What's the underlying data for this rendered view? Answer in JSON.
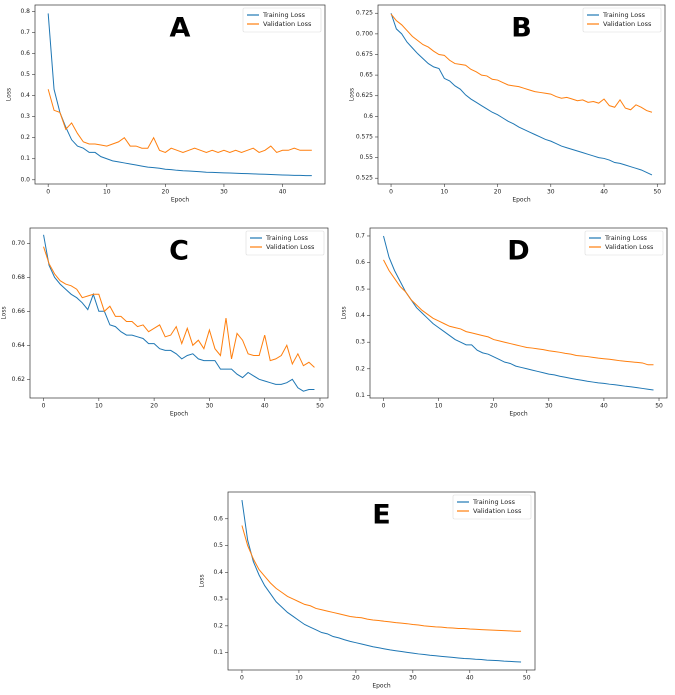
{
  "chart_data": [
    {
      "type": "line",
      "annotation": "A",
      "xlabel": "Epoch",
      "ylabel": "Loss",
      "legend": "upper right",
      "x": [
        0,
        1,
        2,
        3,
        4,
        5,
        6,
        7,
        8,
        9,
        10,
        11,
        12,
        13,
        14,
        15,
        16,
        17,
        18,
        19,
        20,
        21,
        22,
        23,
        24,
        25,
        26,
        27,
        28,
        29,
        30,
        31,
        32,
        33,
        34,
        35,
        36,
        37,
        38,
        39,
        40,
        41,
        42,
        43,
        44,
        45
      ],
      "series": [
        {
          "name": "Training Loss",
          "color": "#1f77b4",
          "values": [
            0.79,
            0.43,
            0.32,
            0.25,
            0.19,
            0.16,
            0.15,
            0.13,
            0.13,
            0.11,
            0.1,
            0.09,
            0.085,
            0.08,
            0.075,
            0.07,
            0.065,
            0.06,
            0.058,
            0.055,
            0.05,
            0.048,
            0.045,
            0.043,
            0.042,
            0.04,
            0.038,
            0.036,
            0.035,
            0.034,
            0.033,
            0.032,
            0.031,
            0.03,
            0.029,
            0.028,
            0.027,
            0.026,
            0.025,
            0.024,
            0.023,
            0.022,
            0.021,
            0.021,
            0.02,
            0.02
          ]
        },
        {
          "name": "Validation Loss",
          "color": "#ff7f0e",
          "values": [
            0.43,
            0.33,
            0.32,
            0.24,
            0.27,
            0.22,
            0.18,
            0.17,
            0.17,
            0.165,
            0.16,
            0.17,
            0.18,
            0.2,
            0.16,
            0.16,
            0.15,
            0.15,
            0.2,
            0.14,
            0.13,
            0.15,
            0.14,
            0.13,
            0.14,
            0.15,
            0.14,
            0.13,
            0.14,
            0.13,
            0.14,
            0.13,
            0.14,
            0.13,
            0.14,
            0.15,
            0.13,
            0.14,
            0.16,
            0.13,
            0.14,
            0.14,
            0.15,
            0.14,
            0.14,
            0.14
          ]
        }
      ],
      "xlim": [
        -2.25,
        47.25
      ],
      "ylim": [
        -0.02,
        0.83
      ],
      "xticks": [
        0,
        10,
        20,
        30,
        40
      ],
      "yticks": [
        {
          "value": 0,
          "label": "0.0"
        },
        0.1,
        0.2,
        0.3,
        0.4,
        0.5,
        0.6,
        0.7,
        0.8
      ]
    },
    {
      "type": "line",
      "annotation": "B",
      "xlabel": "Epoch",
      "ylabel": "Loss",
      "legend": "upper right",
      "x": [
        0,
        1,
        2,
        3,
        4,
        5,
        6,
        7,
        8,
        9,
        10,
        11,
        12,
        13,
        14,
        15,
        16,
        17,
        18,
        19,
        20,
        21,
        22,
        23,
        24,
        25,
        26,
        27,
        28,
        29,
        30,
        31,
        32,
        33,
        34,
        35,
        36,
        37,
        38,
        39,
        40,
        41,
        42,
        43,
        44,
        45,
        46,
        47,
        48,
        49
      ],
      "series": [
        {
          "name": "Training Loss",
          "color": "#1f77b4",
          "values": [
            0.725,
            0.706,
            0.7,
            0.69,
            0.683,
            0.676,
            0.67,
            0.664,
            0.66,
            0.658,
            0.646,
            0.643,
            0.637,
            0.633,
            0.626,
            0.621,
            0.617,
            0.613,
            0.609,
            0.605,
            0.602,
            0.598,
            0.594,
            0.591,
            0.587,
            0.584,
            0.581,
            0.578,
            0.575,
            0.572,
            0.57,
            0.567,
            0.564,
            0.562,
            0.56,
            0.558,
            0.556,
            0.554,
            0.552,
            0.55,
            0.549,
            0.547,
            0.544,
            0.543,
            0.541,
            0.539,
            0.537,
            0.535,
            0.532,
            0.529
          ]
        },
        {
          "name": "Validation Loss",
          "color": "#ff7f0e",
          "values": [
            0.724,
            0.716,
            0.711,
            0.704,
            0.697,
            0.692,
            0.687,
            0.684,
            0.679,
            0.675,
            0.674,
            0.668,
            0.664,
            0.663,
            0.662,
            0.657,
            0.654,
            0.65,
            0.649,
            0.645,
            0.644,
            0.641,
            0.638,
            0.637,
            0.636,
            0.634,
            0.632,
            0.63,
            0.629,
            0.628,
            0.627,
            0.624,
            0.622,
            0.623,
            0.621,
            0.619,
            0.62,
            0.617,
            0.618,
            0.616,
            0.621,
            0.613,
            0.611,
            0.62,
            0.61,
            0.608,
            0.614,
            0.611,
            0.607,
            0.605
          ]
        }
      ],
      "xlim": [
        -2.45,
        51.45
      ],
      "ylim": [
        0.518,
        0.735
      ],
      "xticks": [
        0,
        10,
        20,
        30,
        40,
        50
      ],
      "yticks": [
        0.525,
        0.55,
        0.575,
        0.6,
        0.625,
        0.65,
        0.675,
        {
          "value": 0.7,
          "label": "0.700"
        },
        0.725
      ]
    },
    {
      "type": "line",
      "annotation": "C",
      "xlabel": "Epoch",
      "ylabel": "Loss",
      "legend": "upper right",
      "x": [
        0,
        1,
        2,
        3,
        4,
        5,
        6,
        7,
        8,
        9,
        10,
        11,
        12,
        13,
        14,
        15,
        16,
        17,
        18,
        19,
        20,
        21,
        22,
        23,
        24,
        25,
        26,
        27,
        28,
        29,
        30,
        31,
        32,
        33,
        34,
        35,
        36,
        37,
        38,
        39,
        40,
        41,
        42,
        43,
        44,
        45,
        46,
        47,
        48,
        49
      ],
      "series": [
        {
          "name": "Training Loss",
          "color": "#1f77b4",
          "values": [
            0.705,
            0.687,
            0.68,
            0.676,
            0.673,
            0.67,
            0.668,
            0.665,
            0.661,
            0.67,
            0.66,
            0.66,
            0.652,
            0.651,
            0.648,
            0.646,
            0.646,
            0.645,
            0.644,
            0.641,
            0.641,
            0.638,
            0.637,
            0.637,
            0.635,
            0.632,
            0.634,
            0.635,
            0.632,
            0.631,
            0.631,
            0.631,
            0.626,
            0.626,
            0.626,
            0.623,
            0.621,
            0.624,
            0.622,
            0.62,
            0.619,
            0.618,
            0.617,
            0.617,
            0.618,
            0.62,
            0.615,
            0.613,
            0.614,
            0.614
          ]
        },
        {
          "name": "Validation Loss",
          "color": "#ff7f0e",
          "values": [
            0.698,
            0.688,
            0.682,
            0.678,
            0.676,
            0.675,
            0.673,
            0.668,
            0.669,
            0.67,
            0.67,
            0.66,
            0.663,
            0.657,
            0.657,
            0.654,
            0.654,
            0.651,
            0.652,
            0.648,
            0.65,
            0.652,
            0.645,
            0.646,
            0.651,
            0.641,
            0.65,
            0.64,
            0.643,
            0.638,
            0.649,
            0.638,
            0.634,
            0.656,
            0.632,
            0.647,
            0.643,
            0.635,
            0.634,
            0.634,
            0.646,
            0.631,
            0.632,
            0.634,
            0.64,
            0.629,
            0.635,
            0.628,
            0.63,
            0.627
          ]
        }
      ],
      "xlim": [
        -2.45,
        51.45
      ],
      "ylim": [
        0.609,
        0.709
      ],
      "xticks": [
        0,
        10,
        20,
        30,
        40,
        50
      ],
      "yticks": [
        0.62,
        0.64,
        0.66,
        0.68,
        {
          "value": 0.7,
          "label": "0.70"
        }
      ]
    },
    {
      "type": "line",
      "annotation": "D",
      "xlabel": "Epoch",
      "ylabel": "Loss",
      "legend": "upper right",
      "x": [
        0,
        1,
        2,
        3,
        4,
        5,
        6,
        7,
        8,
        9,
        10,
        11,
        12,
        13,
        14,
        15,
        16,
        17,
        18,
        19,
        20,
        21,
        22,
        23,
        24,
        25,
        26,
        27,
        28,
        29,
        30,
        31,
        32,
        33,
        34,
        35,
        36,
        37,
        38,
        39,
        40,
        41,
        42,
        43,
        44,
        45,
        46,
        47,
        48,
        49
      ],
      "series": [
        {
          "name": "Training Loss",
          "color": "#1f77b4",
          "values": [
            0.7,
            0.62,
            0.57,
            0.53,
            0.49,
            0.46,
            0.43,
            0.41,
            0.39,
            0.37,
            0.355,
            0.34,
            0.325,
            0.31,
            0.3,
            0.29,
            0.29,
            0.27,
            0.26,
            0.255,
            0.245,
            0.235,
            0.225,
            0.22,
            0.21,
            0.205,
            0.2,
            0.195,
            0.19,
            0.185,
            0.18,
            0.177,
            0.172,
            0.168,
            0.164,
            0.16,
            0.157,
            0.153,
            0.15,
            0.147,
            0.145,
            0.142,
            0.14,
            0.137,
            0.134,
            0.132,
            0.129,
            0.126,
            0.123,
            0.12
          ]
        },
        {
          "name": "Validation Loss",
          "color": "#ff7f0e",
          "values": [
            0.61,
            0.57,
            0.54,
            0.51,
            0.49,
            0.46,
            0.44,
            0.42,
            0.405,
            0.39,
            0.38,
            0.37,
            0.36,
            0.355,
            0.35,
            0.34,
            0.335,
            0.33,
            0.325,
            0.32,
            0.31,
            0.305,
            0.3,
            0.295,
            0.29,
            0.285,
            0.28,
            0.278,
            0.275,
            0.272,
            0.268,
            0.265,
            0.262,
            0.258,
            0.255,
            0.25,
            0.248,
            0.246,
            0.243,
            0.24,
            0.238,
            0.236,
            0.233,
            0.23,
            0.228,
            0.226,
            0.224,
            0.222,
            0.215,
            0.215
          ]
        }
      ],
      "xlim": [
        -2.45,
        51.45
      ],
      "ylim": [
        0.09,
        0.73
      ],
      "xticks": [
        0,
        10,
        20,
        30,
        40,
        50
      ],
      "yticks": [
        0.1,
        0.2,
        0.3,
        0.4,
        0.5,
        0.6,
        0.7
      ]
    },
    {
      "type": "line",
      "annotation": "E",
      "xlabel": "Epoch",
      "ylabel": "Loss",
      "legend": "upper right",
      "x": [
        0,
        1,
        2,
        3,
        4,
        5,
        6,
        7,
        8,
        9,
        10,
        11,
        12,
        13,
        14,
        15,
        16,
        17,
        18,
        19,
        20,
        21,
        22,
        23,
        24,
        25,
        26,
        27,
        28,
        29,
        30,
        31,
        32,
        33,
        34,
        35,
        36,
        37,
        38,
        39,
        40,
        41,
        42,
        43,
        44,
        45,
        46,
        47,
        48,
        49
      ],
      "series": [
        {
          "name": "Training Loss",
          "color": "#1f77b4",
          "values": [
            0.67,
            0.52,
            0.44,
            0.39,
            0.35,
            0.32,
            0.29,
            0.27,
            0.25,
            0.235,
            0.22,
            0.205,
            0.195,
            0.185,
            0.175,
            0.17,
            0.16,
            0.155,
            0.148,
            0.142,
            0.137,
            0.132,
            0.127,
            0.122,
            0.118,
            0.114,
            0.11,
            0.107,
            0.104,
            0.101,
            0.098,
            0.095,
            0.093,
            0.09,
            0.088,
            0.086,
            0.084,
            0.082,
            0.08,
            0.078,
            0.077,
            0.075,
            0.074,
            0.072,
            0.071,
            0.07,
            0.068,
            0.067,
            0.066,
            0.065
          ]
        },
        {
          "name": "Validation Loss",
          "color": "#ff7f0e",
          "values": [
            0.575,
            0.5,
            0.45,
            0.41,
            0.385,
            0.36,
            0.34,
            0.325,
            0.31,
            0.3,
            0.29,
            0.28,
            0.275,
            0.265,
            0.26,
            0.255,
            0.25,
            0.245,
            0.24,
            0.235,
            0.232,
            0.23,
            0.225,
            0.222,
            0.22,
            0.217,
            0.215,
            0.212,
            0.21,
            0.208,
            0.205,
            0.203,
            0.2,
            0.198,
            0.196,
            0.195,
            0.193,
            0.192,
            0.19,
            0.19,
            0.188,
            0.187,
            0.186,
            0.185,
            0.184,
            0.183,
            0.182,
            0.181,
            0.18,
            0.18
          ]
        }
      ],
      "xlim": [
        -2.45,
        51.45
      ],
      "ylim": [
        0.035,
        0.7
      ],
      "xticks": [
        0,
        10,
        20,
        30,
        40,
        50
      ],
      "yticks": [
        0.1,
        0.2,
        0.3,
        0.4,
        0.5,
        0.6
      ]
    }
  ]
}
